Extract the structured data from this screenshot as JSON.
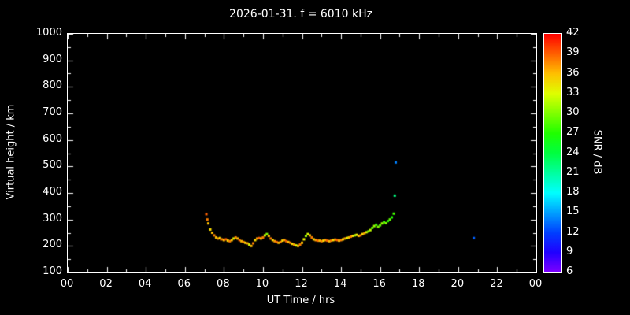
{
  "chart_data": {
    "type": "scatter",
    "title": "2026-01-31. f = 6010 kHz",
    "xlabel": "UT Time / hrs",
    "ylabel": "Virtual height / km",
    "xlim": [
      0,
      24
    ],
    "ylim": [
      100,
      1000
    ],
    "grid": false,
    "legend": "none",
    "x_ticks": {
      "values": [
        0,
        2,
        4,
        6,
        8,
        10,
        12,
        14,
        16,
        18,
        20,
        22,
        24
      ],
      "labels": [
        "00",
        "02",
        "04",
        "06",
        "08",
        "10",
        "12",
        "14",
        "16",
        "18",
        "20",
        "22",
        "00"
      ]
    },
    "y_ticks": {
      "values": [
        100,
        200,
        300,
        400,
        500,
        600,
        700,
        800,
        900,
        1000
      ],
      "labels": [
        "100",
        "200",
        "300",
        "400",
        "500",
        "600",
        "700",
        "800",
        "900",
        "1000"
      ]
    },
    "colorbar": {
      "label": "SNR / dB",
      "min": 6,
      "max": 42,
      "ticks": [
        42,
        39,
        36,
        33,
        30,
        27,
        24,
        21,
        18,
        15,
        12,
        9,
        6
      ]
    },
    "series_note": "points are [ut_time_hrs, virtual_height_km, snr_db]",
    "points": [
      [
        7.1,
        320,
        39
      ],
      [
        7.15,
        300,
        38
      ],
      [
        7.2,
        285,
        36
      ],
      [
        7.3,
        262,
        35
      ],
      [
        7.4,
        250,
        36
      ],
      [
        7.5,
        240,
        38
      ],
      [
        7.6,
        232,
        36
      ],
      [
        7.7,
        228,
        37
      ],
      [
        7.8,
        230,
        35
      ],
      [
        7.9,
        225,
        38
      ],
      [
        8.0,
        222,
        36
      ],
      [
        8.1,
        225,
        39
      ],
      [
        8.2,
        220,
        35
      ],
      [
        8.3,
        218,
        38
      ],
      [
        8.4,
        222,
        36
      ],
      [
        8.5,
        228,
        33
      ],
      [
        8.6,
        232,
        38
      ],
      [
        8.7,
        228,
        36
      ],
      [
        8.8,
        222,
        39
      ],
      [
        8.9,
        218,
        36
      ],
      [
        9.0,
        215,
        38
      ],
      [
        9.1,
        212,
        35
      ],
      [
        9.2,
        210,
        37
      ],
      [
        9.3,
        205,
        33
      ],
      [
        9.4,
        200,
        36
      ],
      [
        9.5,
        210,
        38
      ],
      [
        9.6,
        222,
        35
      ],
      [
        9.7,
        228,
        37
      ],
      [
        9.8,
        230,
        39
      ],
      [
        9.9,
        228,
        36
      ],
      [
        10.0,
        232,
        38
      ],
      [
        10.1,
        240,
        33
      ],
      [
        10.2,
        245,
        30
      ],
      [
        10.3,
        238,
        36
      ],
      [
        10.4,
        228,
        38
      ],
      [
        10.5,
        222,
        35
      ],
      [
        10.6,
        218,
        37
      ],
      [
        10.7,
        215,
        39
      ],
      [
        10.8,
        212,
        36
      ],
      [
        10.9,
        215,
        38
      ],
      [
        11.0,
        220,
        35
      ],
      [
        11.1,
        222,
        37
      ],
      [
        11.2,
        218,
        39
      ],
      [
        11.3,
        215,
        36
      ],
      [
        11.4,
        212,
        38
      ],
      [
        11.5,
        208,
        35
      ],
      [
        11.6,
        205,
        37
      ],
      [
        11.7,
        202,
        33
      ],
      [
        11.8,
        200,
        36
      ],
      [
        11.9,
        205,
        38
      ],
      [
        12.0,
        212,
        36
      ],
      [
        12.1,
        225,
        34
      ],
      [
        12.2,
        238,
        31
      ],
      [
        12.3,
        245,
        33
      ],
      [
        12.4,
        240,
        36
      ],
      [
        12.5,
        232,
        38
      ],
      [
        12.6,
        225,
        35
      ],
      [
        12.7,
        222,
        37
      ],
      [
        12.8,
        220,
        39
      ],
      [
        12.9,
        220,
        36
      ],
      [
        13.0,
        218,
        38
      ],
      [
        13.1,
        220,
        35
      ],
      [
        13.2,
        222,
        37
      ],
      [
        13.3,
        220,
        39
      ],
      [
        13.4,
        218,
        36
      ],
      [
        13.5,
        220,
        38
      ],
      [
        13.6,
        222,
        35
      ],
      [
        13.7,
        224,
        37
      ],
      [
        13.8,
        222,
        39
      ],
      [
        13.9,
        220,
        36
      ],
      [
        14.0,
        222,
        38
      ],
      [
        14.1,
        225,
        35
      ],
      [
        14.2,
        228,
        37
      ],
      [
        14.3,
        230,
        33
      ],
      [
        14.4,
        232,
        36
      ],
      [
        14.5,
        235,
        38
      ],
      [
        14.6,
        238,
        35
      ],
      [
        14.7,
        240,
        31
      ],
      [
        14.8,
        242,
        34
      ],
      [
        14.9,
        238,
        36
      ],
      [
        15.0,
        240,
        38
      ],
      [
        15.1,
        245,
        35
      ],
      [
        15.2,
        248,
        37
      ],
      [
        15.3,
        252,
        33
      ],
      [
        15.4,
        255,
        30
      ],
      [
        15.5,
        260,
        32
      ],
      [
        15.6,
        268,
        29
      ],
      [
        15.7,
        275,
        31
      ],
      [
        15.8,
        280,
        28
      ],
      [
        15.9,
        272,
        30
      ],
      [
        16.0,
        278,
        29
      ],
      [
        16.1,
        285,
        31
      ],
      [
        16.2,
        290,
        28
      ],
      [
        16.3,
        286,
        30
      ],
      [
        16.4,
        294,
        27
      ],
      [
        16.5,
        300,
        29
      ],
      [
        16.6,
        308,
        27
      ],
      [
        16.7,
        322,
        28
      ],
      [
        16.75,
        390,
        22
      ],
      [
        16.8,
        515,
        14
      ],
      [
        20.8,
        230,
        13
      ]
    ]
  },
  "colors": {
    "background": "#000000",
    "foreground": "#ffffff"
  }
}
